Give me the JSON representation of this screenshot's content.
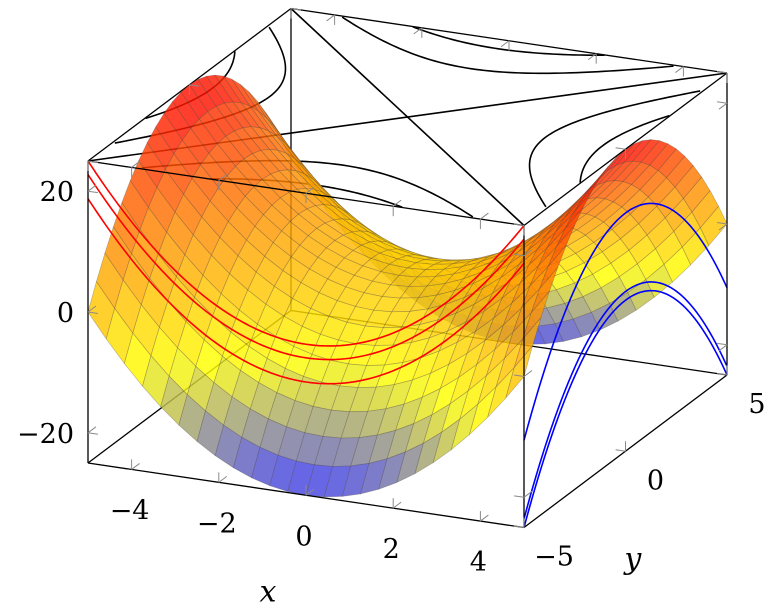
{
  "chart_data": {
    "type": "surface",
    "function": "x^2 - y^2",
    "x_domain": [
      -5,
      5
    ],
    "y_domain": [
      -5,
      5
    ],
    "samples": 25,
    "colormap": [
      "#2a2aff",
      "#ffff00",
      "#ff8c00",
      "#ff0000"
    ],
    "z_range": [
      -25,
      25
    ],
    "contour_levels": [
      -20,
      -10,
      0,
      10,
      20
    ],
    "top_contour_color": "#000000",
    "x_projection_color": "#ff0000",
    "x_projection_curves_y": [
      -1.5,
      0,
      2.5
    ],
    "y_projection_color": "#0000ff",
    "y_projection_curves_x": [
      -1.2,
      0,
      3.8
    ],
    "x_ticks": [
      -4,
      -2,
      0,
      2,
      4
    ],
    "y_ticks": [
      -5,
      0,
      5
    ],
    "z_ticks": [
      -20,
      0,
      20
    ],
    "x_tick_labels": [
      "−4",
      "−2",
      "0",
      "2",
      "4"
    ],
    "y_tick_labels": [
      "−5",
      "0",
      "5"
    ],
    "z_tick_labels": [
      "−20",
      "0",
      "20"
    ],
    "xlabel": "x",
    "ylabel": "y",
    "zlabel": ""
  }
}
